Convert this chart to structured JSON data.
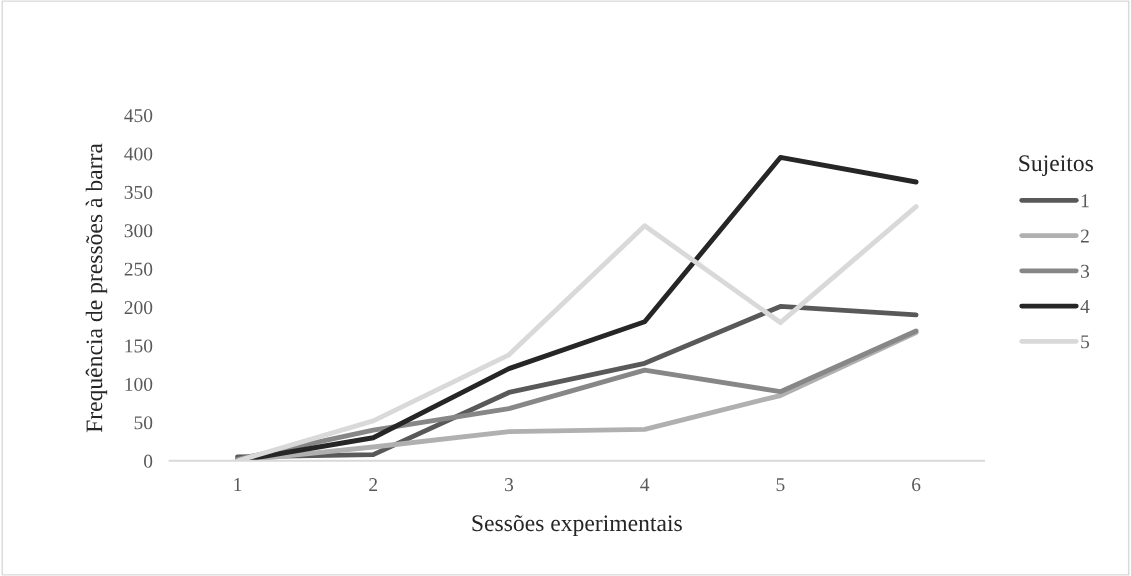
{
  "chart_data": {
    "type": "line",
    "xlabel": "Sessões experimentais",
    "ylabel": "Frequência de pressões à barra",
    "legend_title": "Sujeitos",
    "categories": [
      "1",
      "2",
      "3",
      "4",
      "5",
      "6"
    ],
    "series": [
      {
        "name": "1",
        "color": "#595959",
        "values": [
          5,
          8,
          89,
          127,
          201,
          190
        ]
      },
      {
        "name": "2",
        "color": "#b0b0b0",
        "values": [
          0,
          18,
          38,
          41,
          85,
          167
        ]
      },
      {
        "name": "3",
        "color": "#878787",
        "values": [
          2,
          40,
          68,
          118,
          90,
          169
        ]
      },
      {
        "name": "4",
        "color": "#262626",
        "values": [
          0,
          30,
          120,
          181,
          395,
          363
        ]
      },
      {
        "name": "5",
        "color": "#d9d9d9",
        "values": [
          0,
          52,
          138,
          306,
          180,
          331
        ]
      }
    ],
    "ylim": [
      0,
      450
    ],
    "yticks": [
      0,
      50,
      100,
      150,
      200,
      250,
      300,
      350,
      400,
      450
    ],
    "grid": false,
    "legend": "right",
    "marker": "none",
    "line_style": "solid"
  }
}
